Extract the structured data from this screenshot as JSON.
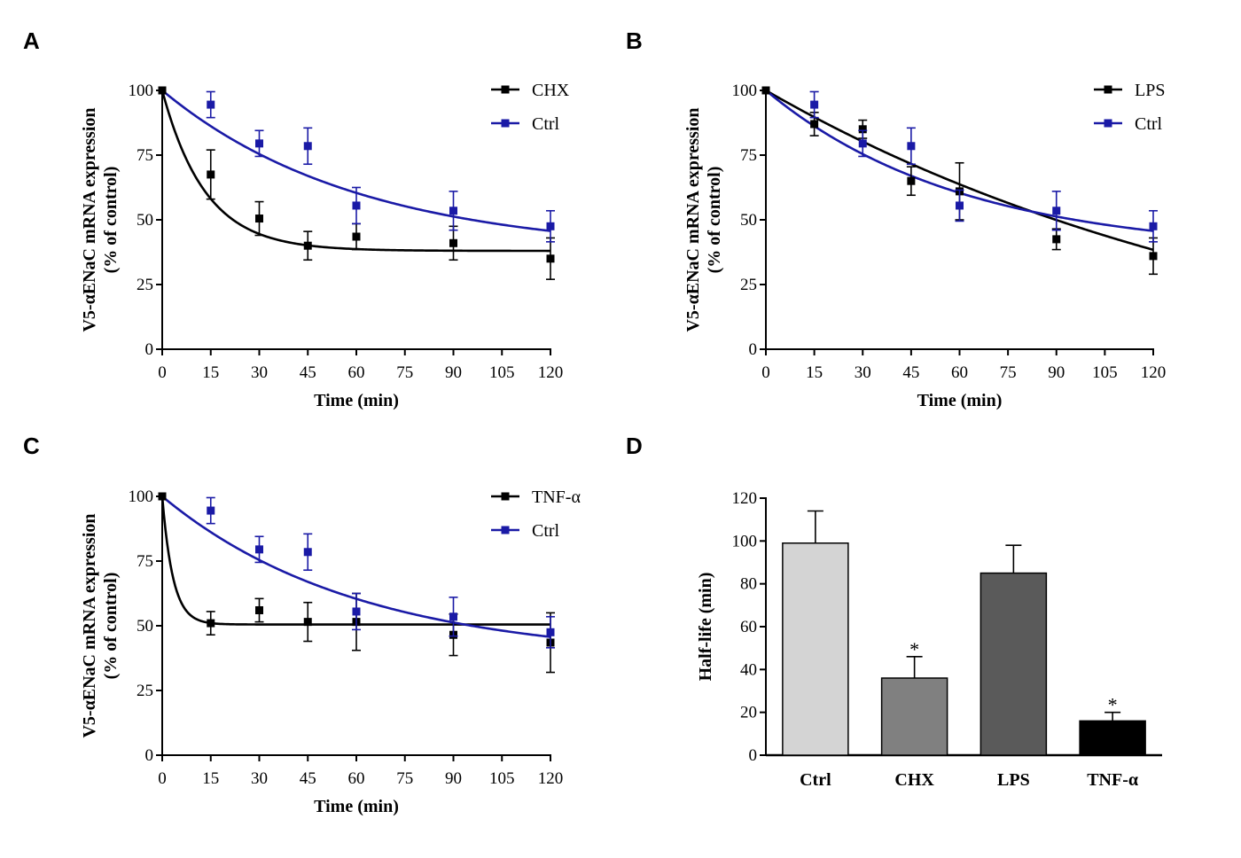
{
  "chart_data": [
    {
      "panel": "A",
      "type": "line",
      "xlabel": "Time (min)",
      "ylabel_line1": "V5-αENaC mRNA expression",
      "ylabel_line2": "(% of control)",
      "xlim": [
        0,
        120
      ],
      "ylim": [
        0,
        100
      ],
      "xticks": [
        0,
        15,
        30,
        45,
        60,
        75,
        90,
        105,
        120
      ],
      "yticks": [
        0,
        25,
        50,
        75,
        100
      ],
      "legend_position": "top-right",
      "series": [
        {
          "name": "CHX",
          "color": "#000000",
          "x": [
            0,
            15,
            30,
            45,
            60,
            90,
            120
          ],
          "y": [
            100,
            67.5,
            50.5,
            40.0,
            43.5,
            41.0,
            35.0
          ],
          "err": [
            0,
            9.5,
            6.5,
            5.5,
            5.0,
            6.5,
            8.0
          ],
          "fit": {
            "plateau": 38,
            "k": 0.075
          }
        },
        {
          "name": "Ctrl",
          "color": "#1a1aa6",
          "x": [
            15,
            30,
            45,
            60,
            90,
            120
          ],
          "y": [
            94.5,
            79.5,
            78.5,
            55.5,
            53.5,
            47.5
          ],
          "err": [
            5.0,
            5.0,
            7.0,
            7.0,
            7.5,
            6.0
          ],
          "fit": {
            "plateau": 37,
            "k": 0.0165
          }
        }
      ]
    },
    {
      "panel": "B",
      "type": "line",
      "xlabel": "Time (min)",
      "ylabel_line1": "V5-αENaC mRNA expression",
      "ylabel_line2": "(% of control)",
      "xlim": [
        0,
        120
      ],
      "ylim": [
        0,
        100
      ],
      "xticks": [
        0,
        15,
        30,
        45,
        60,
        75,
        90,
        105,
        120
      ],
      "yticks": [
        0,
        25,
        50,
        75,
        100
      ],
      "legend_position": "top-right",
      "series": [
        {
          "name": "LPS",
          "color": "#000000",
          "x": [
            0,
            15,
            30,
            45,
            60,
            90,
            120
          ],
          "y": [
            100,
            87.0,
            85.0,
            65.0,
            61.0,
            42.5,
            36.0
          ],
          "err": [
            0,
            4.5,
            3.5,
            5.5,
            11.0,
            4.0,
            7.0
          ],
          "fit": {
            "plateau": -20,
            "k": 0.006
          }
        },
        {
          "name": "Ctrl",
          "color": "#1a1aa6",
          "x": [
            15,
            30,
            45,
            60,
            90,
            120
          ],
          "y": [
            94.5,
            79.5,
            78.5,
            55.5,
            53.5,
            47.5
          ],
          "err": [
            5.0,
            5.0,
            7.0,
            6.0,
            7.5,
            6.0
          ],
          "fit": {
            "plateau": 37,
            "k": 0.0165
          }
        }
      ]
    },
    {
      "panel": "C",
      "type": "line",
      "xlabel": "Time (min)",
      "ylabel_line1": "V5-αENaC mRNA expression",
      "ylabel_line2": "(% of control)",
      "xlim": [
        0,
        120
      ],
      "ylim": [
        0,
        100
      ],
      "xticks": [
        0,
        15,
        30,
        45,
        60,
        75,
        90,
        105,
        120
      ],
      "yticks": [
        0,
        25,
        50,
        75,
        100
      ],
      "legend_position": "top-right",
      "series": [
        {
          "name": "TNF-α",
          "color": "#000000",
          "x": [
            0,
            15,
            30,
            45,
            60,
            90,
            120
          ],
          "y": [
            100,
            51.0,
            56.0,
            51.5,
            51.5,
            46.5,
            43.5
          ],
          "err": [
            0,
            4.5,
            4.5,
            7.5,
            11.0,
            8.0,
            11.5
          ],
          "fit": {
            "plateau": 50.5,
            "k": 0.3
          }
        },
        {
          "name": "Ctrl",
          "color": "#1a1aa6",
          "x": [
            15,
            30,
            45,
            60,
            90,
            120
          ],
          "y": [
            94.5,
            79.5,
            78.5,
            55.5,
            53.5,
            47.5
          ],
          "err": [
            5.0,
            5.0,
            7.0,
            7.0,
            7.5,
            6.0
          ],
          "fit": {
            "plateau": 37,
            "k": 0.0165
          }
        }
      ]
    },
    {
      "panel": "D",
      "type": "bar",
      "ylabel": "Half-life (min)",
      "ylim": [
        0,
        120
      ],
      "yticks": [
        0,
        20,
        40,
        60,
        80,
        100,
        120
      ],
      "categories": [
        "Ctrl",
        "CHX",
        "LPS",
        "TNF-α"
      ],
      "values": [
        99,
        36,
        85,
        16
      ],
      "errors": [
        15,
        10,
        13,
        4
      ],
      "significance": [
        "",
        "*",
        "",
        "*"
      ],
      "colors": [
        "#d4d4d4",
        "#808080",
        "#5a5a5a",
        "#000000"
      ]
    }
  ]
}
